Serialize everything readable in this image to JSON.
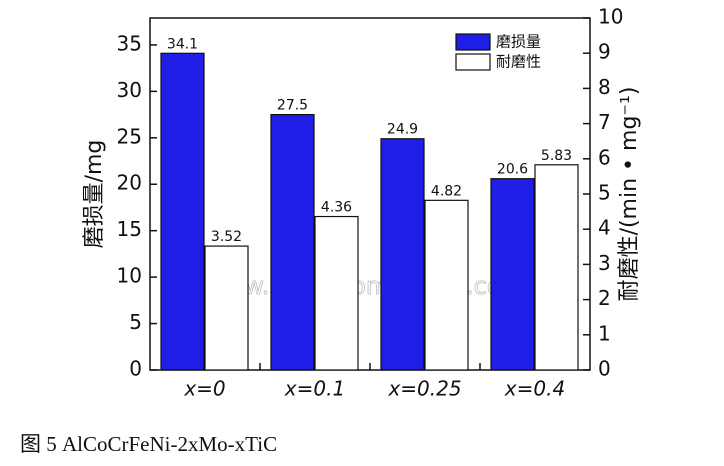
{
  "chart_data": {
    "type": "bar",
    "categories": [
      "x=0",
      "x=0.1",
      "x=0.25",
      "x=0.4"
    ],
    "series": [
      {
        "name": "磨损量",
        "color": "#1e1ee6",
        "values": [
          34.1,
          27.5,
          24.9,
          20.6
        ]
      },
      {
        "name": "耐磨性",
        "color": "#ffffff",
        "values": [
          3.52,
          4.36,
          4.82,
          5.83
        ],
        "axis": "y2"
      }
    ],
    "ylim": [
      0,
      37.9
    ],
    "yticks": [
      0,
      5,
      10,
      15,
      20,
      25,
      30,
      35
    ],
    "y2lim": [
      0,
      10
    ],
    "y2ticks": [
      0,
      1,
      2,
      3,
      4,
      5,
      6,
      7,
      8,
      9,
      10
    ],
    "ylabel": "磨损量/mg",
    "y2label": "耐磨性/(min • mg⁻¹)",
    "legend": "upper right",
    "watermark": "www.satnanomaterial.com",
    "caption": "图 5   AlCoCrFeNi-2xMo-xTiC"
  }
}
